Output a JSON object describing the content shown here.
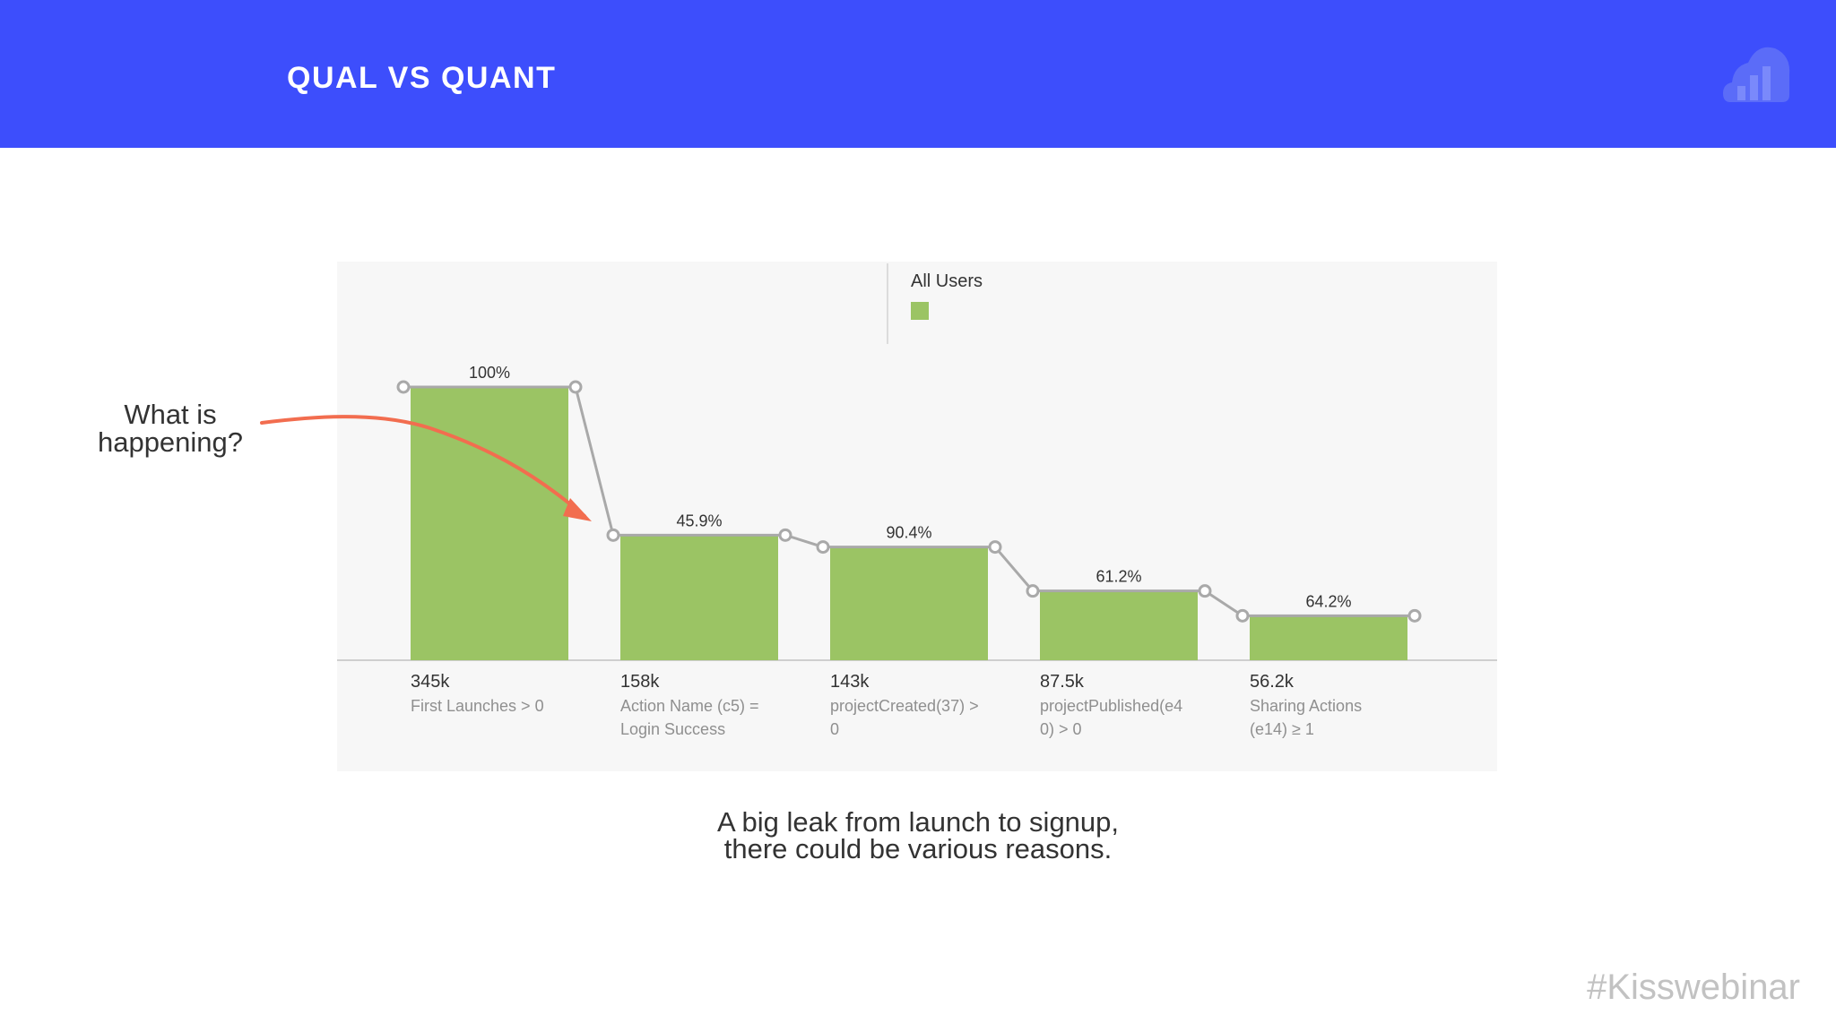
{
  "header": {
    "title": "QUAL VS QUANT",
    "logo_icon": "bar-chart-icon",
    "background": "#3d4efc"
  },
  "annotation": {
    "line1": "What is",
    "line2": "happening?",
    "arrow_color": "#f26d4f"
  },
  "caption": {
    "line1": "A big leak from launch to signup,",
    "line2": "there could be various reasons."
  },
  "hashtag": "#Kisswebinar",
  "chart_data": {
    "type": "bar",
    "legend": {
      "label": "All Users",
      "color": "#9bc464",
      "position": "top-center"
    },
    "categories": [
      [
        "First Launches > 0"
      ],
      [
        "Action Name (c5) =",
        "Login Success"
      ],
      [
        "projectCreated(37) >",
        "0"
      ],
      [
        "projectPublished(e4",
        "0) > 0"
      ],
      [
        "Sharing Actions",
        "(e14) ≥ 1"
      ]
    ],
    "values": [
      345000,
      158000,
      143000,
      87500,
      56200
    ],
    "value_labels": [
      "345k",
      "158k",
      "143k",
      "87.5k",
      "56.2k"
    ],
    "percent_labels": [
      "100%",
      "45.9%",
      "90.4%",
      "61.2%",
      "64.2%"
    ],
    "bar_color": "#9bc464",
    "line_color": "#a9a9a9",
    "ylim": [
      0,
      345000
    ],
    "grid": false
  }
}
